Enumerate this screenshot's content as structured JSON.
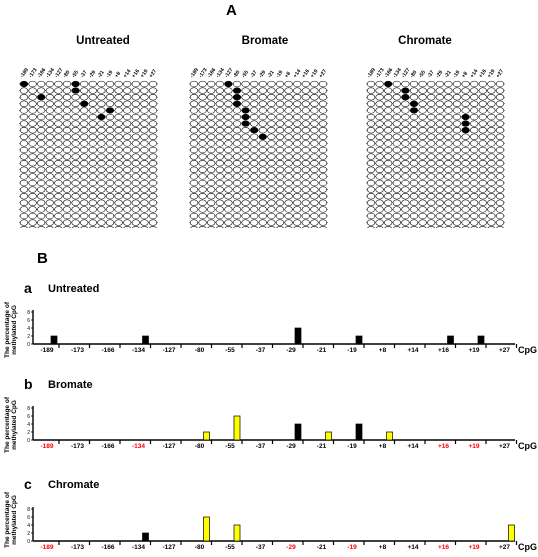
{
  "panel_a": {
    "letter": "A",
    "groups": [
      {
        "title": "Untreated",
        "methylated": [
          [
            0,
            0
          ],
          [
            0,
            6
          ],
          [
            1,
            6
          ],
          [
            2,
            2
          ],
          [
            3,
            7
          ],
          [
            4,
            10
          ],
          [
            5,
            9
          ]
        ]
      },
      {
        "title": "Bromate",
        "methylated": [
          [
            0,
            4
          ],
          [
            1,
            5
          ],
          [
            2,
            5
          ],
          [
            3,
            5
          ],
          [
            4,
            6
          ],
          [
            5,
            6
          ],
          [
            6,
            6
          ],
          [
            7,
            7
          ],
          [
            8,
            8
          ]
        ]
      },
      {
        "title": "Chromate",
        "methylated": [
          [
            0,
            2
          ],
          [
            1,
            4
          ],
          [
            2,
            4
          ],
          [
            3,
            5
          ],
          [
            4,
            5
          ],
          [
            5,
            11
          ],
          [
            6,
            11
          ],
          [
            7,
            11
          ]
        ]
      }
    ],
    "column_labels": [
      "-189",
      "-173",
      "-166",
      "-134",
      "-127",
      "-80",
      "-55",
      "-37",
      "-29",
      "-21",
      "-19",
      "+8",
      "+14",
      "+16",
      "+19",
      "+27"
    ],
    "rows": 25
  },
  "panel_b": {
    "letter": "B",
    "y_axis_label": [
      "The percentage of",
      "methylated CpG"
    ],
    "x_axis_unit": "CpG",
    "x_ticks": [
      "-189",
      "-173",
      "-166",
      "-134",
      "-127",
      "-80",
      "-55",
      "-37",
      "-29",
      "-21",
      "-19",
      "+8",
      "+14",
      "+16",
      "+19",
      "+27"
    ]
  },
  "chart_data": [
    {
      "type": "bar",
      "letter": "a",
      "title": "Untreated",
      "y_ticks": [
        "8",
        "6",
        "4",
        "2",
        "0"
      ],
      "categories": [
        "-189",
        "-173",
        "-166",
        "-134",
        "-127",
        "-80",
        "-55",
        "-37",
        "-29",
        "-21",
        "-19",
        "+8",
        "+14",
        "+16",
        "+19",
        "+27"
      ],
      "values": [
        2,
        0,
        0,
        2,
        0,
        0,
        0,
        0,
        4,
        0,
        2,
        0,
        0,
        2,
        2,
        0
      ],
      "bar_colors": [
        "black",
        "black",
        "black",
        "black",
        "black",
        "black",
        "black",
        "black",
        "black",
        "black",
        "black",
        "black",
        "black",
        "black",
        "black",
        "black"
      ],
      "red_ticks": [],
      "xlabel": "CpG",
      "ylim": [
        0,
        8
      ]
    },
    {
      "type": "bar",
      "letter": "b",
      "title": "Bromate",
      "y_ticks": [
        "8",
        "6",
        "4",
        "2",
        "0"
      ],
      "categories": [
        "-189",
        "-173",
        "-166",
        "-134",
        "-127",
        "-80",
        "-55",
        "-37",
        "-29",
        "-21",
        "-19",
        "+8",
        "+14",
        "+16",
        "+19",
        "+27"
      ],
      "values": [
        0,
        0,
        0,
        0,
        0,
        2,
        6,
        0,
        4,
        2,
        4,
        2,
        0,
        0,
        0,
        0
      ],
      "bar_colors": [
        "yellow",
        "yellow",
        "yellow",
        "yellow",
        "yellow",
        "yellow",
        "yellow",
        "yellow",
        "black",
        "yellow",
        "black",
        "yellow",
        "yellow",
        "yellow",
        "yellow",
        "yellow"
      ],
      "red_ticks": [
        "-189",
        "-134",
        "+16",
        "+19"
      ],
      "xlabel": "CpG",
      "ylim": [
        0,
        8
      ]
    },
    {
      "type": "bar",
      "letter": "c",
      "title": "Chromate",
      "y_ticks": [
        "8",
        "6",
        "4",
        "2",
        "0"
      ],
      "categories": [
        "-189",
        "-173",
        "-166",
        "-134",
        "-127",
        "-80",
        "-55",
        "-37",
        "-29",
        "-21",
        "-19",
        "+8",
        "+14",
        "+16",
        "+19",
        "+27"
      ],
      "values": [
        0,
        0,
        0,
        2,
        0,
        6,
        4,
        0,
        0,
        0,
        0,
        0,
        0,
        0,
        0,
        4
      ],
      "bar_colors": [
        "yellow",
        "yellow",
        "yellow",
        "black",
        "yellow",
        "yellow",
        "yellow",
        "yellow",
        "yellow",
        "yellow",
        "yellow",
        "yellow",
        "yellow",
        "yellow",
        "yellow",
        "yellow"
      ],
      "red_ticks": [
        "-189",
        "-29",
        "-19",
        "+16",
        "+19"
      ],
      "xlabel": "CpG",
      "ylim": [
        0,
        8
      ]
    }
  ],
  "colors": {
    "yellow": "#ffff00",
    "black": "#000000",
    "red_label": "#ff0000"
  }
}
